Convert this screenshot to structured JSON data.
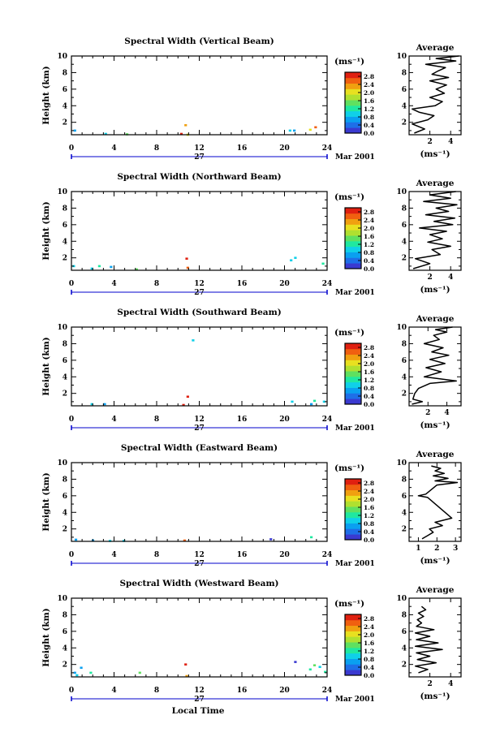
{
  "figure": {
    "bottom_label": "Local Time",
    "date_day": "27",
    "date_label": "Mar 2001"
  },
  "colorbar": {
    "unit": "(ms⁻¹)",
    "ticks": [
      "2.8",
      "2.4",
      "2.0",
      "1.6",
      "1.2",
      "0.8",
      "0.4",
      "0.0"
    ],
    "range": [
      0.0,
      3.0
    ],
    "colors": [
      "#3a3ad0",
      "#1e6fe8",
      "#0aa0f0",
      "#10d0e8",
      "#20e8a0",
      "#60e060",
      "#b0e030",
      "#e8e020",
      "#f0a010",
      "#f06010",
      "#e02010"
    ]
  },
  "chart_data": [
    {
      "type": "heatmap",
      "title": "Spectral Width (Vertical Beam)",
      "ylabel": "Height (km)",
      "xlim": [
        0,
        24
      ],
      "ylim": [
        0.5,
        10
      ],
      "xticks": [
        0,
        4,
        8,
        12,
        16,
        20,
        24
      ],
      "yticks": [
        2,
        4,
        6,
        8,
        10
      ],
      "cells": [
        {
          "t": 0.2,
          "h": 1.0,
          "w": 0.8
        },
        {
          "t": 3.1,
          "h": 0.6,
          "w": 0.9
        },
        {
          "t": 5.1,
          "h": 0.55,
          "w": 1.4
        },
        {
          "t": 10.2,
          "h": 0.6,
          "w": 2.9
        },
        {
          "t": 10.6,
          "h": 1.65,
          "w": 2.2
        },
        {
          "t": 10.8,
          "h": 0.5,
          "w": 2.0
        },
        {
          "t": 20.4,
          "h": 1.0,
          "w": 0.9
        },
        {
          "t": 20.8,
          "h": 1.0,
          "w": 0.8
        },
        {
          "t": 22.3,
          "h": 1.1,
          "w": 2.0
        },
        {
          "t": 22.8,
          "h": 1.4,
          "w": 2.5
        }
      ],
      "profile": {
        "xlabel": "(ms⁻¹)",
        "title": "Average",
        "xlim": [
          0,
          5
        ],
        "xticks": [
          2,
          4
        ],
        "ylim": [
          0.5,
          10
        ],
        "h": [
          0.7,
          1.2,
          1.8,
          2.3,
          2.8,
          3.2,
          3.6,
          4.0,
          4.5,
          5.0,
          5.5,
          6.0,
          6.5,
          7.0,
          7.4,
          7.8,
          8.2,
          8.6,
          9.0,
          9.4,
          9.7,
          10.0
        ],
        "w": [
          0.5,
          1.5,
          0.3,
          1.8,
          2.4,
          1.0,
          0.3,
          2.5,
          3.2,
          2.0,
          3.4,
          2.6,
          3.6,
          2.0,
          3.8,
          2.2,
          2.8,
          3.5,
          1.6,
          4.5,
          2.6,
          4.8
        ]
      }
    },
    {
      "type": "heatmap",
      "title": "Spectral Width (Northward Beam)",
      "ylabel": "Height (km)",
      "xlim": [
        0,
        24
      ],
      "ylim": [
        0.5,
        10
      ],
      "xticks": [
        0,
        4,
        8,
        12,
        16,
        20,
        24
      ],
      "yticks": [
        2,
        4,
        6,
        8,
        10
      ],
      "cells": [
        {
          "t": 0.1,
          "h": 1.0,
          "w": 0.9
        },
        {
          "t": 1.8,
          "h": 0.7,
          "w": 1.0
        },
        {
          "t": 2.5,
          "h": 1.0,
          "w": 1.3
        },
        {
          "t": 3.6,
          "h": 0.9,
          "w": 0.8
        },
        {
          "t": 6.0,
          "h": 0.6,
          "w": 1.4
        },
        {
          "t": 10.7,
          "h": 1.9,
          "w": 2.9
        },
        {
          "t": 10.8,
          "h": 0.8,
          "w": 2.5
        },
        {
          "t": 20.5,
          "h": 1.7,
          "w": 0.9
        },
        {
          "t": 20.9,
          "h": 2.0,
          "w": 1.0
        },
        {
          "t": 23.5,
          "h": 1.3,
          "w": 1.1
        }
      ],
      "profile": {
        "xlabel": "(ms⁻¹)",
        "title": "Average",
        "xlim": [
          0,
          5
        ],
        "xticks": [
          2,
          4
        ],
        "ylim": [
          0.5,
          10
        ],
        "h": [
          0.7,
          1.3,
          1.9,
          2.4,
          3.0,
          3.4,
          3.9,
          4.3,
          4.8,
          5.2,
          5.6,
          6.0,
          6.4,
          6.8,
          7.2,
          7.6,
          8.0,
          8.4,
          8.8,
          9.2,
          9.6,
          10.0
        ],
        "w": [
          0.4,
          2.0,
          0.6,
          3.0,
          2.2,
          4.0,
          1.8,
          3.2,
          2.0,
          3.6,
          1.0,
          4.2,
          2.4,
          4.4,
          1.6,
          3.8,
          2.6,
          4.6,
          1.4,
          4.0,
          2.0,
          4.5
        ]
      }
    },
    {
      "type": "heatmap",
      "title": "Spectral Width (Southward Beam)",
      "ylabel": "Height (km)",
      "xlim": [
        0,
        24
      ],
      "ylim": [
        0.5,
        10
      ],
      "xticks": [
        0,
        4,
        8,
        12,
        16,
        20,
        24
      ],
      "yticks": [
        2,
        4,
        6,
        8,
        10
      ],
      "cells": [
        {
          "t": 1.8,
          "h": 0.7,
          "w": 1.0
        },
        {
          "t": 3.0,
          "h": 0.7,
          "w": 0.8
        },
        {
          "t": 10.4,
          "h": 0.6,
          "w": 3.0
        },
        {
          "t": 10.8,
          "h": 1.6,
          "w": 2.8
        },
        {
          "t": 11.3,
          "h": 8.4,
          "w": 0.9
        },
        {
          "t": 20.6,
          "h": 1.0,
          "w": 1.0
        },
        {
          "t": 22.4,
          "h": 0.7,
          "w": 0.7
        },
        {
          "t": 22.7,
          "h": 1.1,
          "w": 1.2
        },
        {
          "t": 23.6,
          "h": 1.0,
          "w": 0.9
        }
      ],
      "profile": {
        "xlabel": "(ms⁻¹)",
        "title": "Average",
        "xlim": [
          0,
          5.5
        ],
        "xticks": [
          2,
          4
        ],
        "ylim": [
          0.5,
          10
        ],
        "h": [
          0.7,
          1.0,
          1.3,
          2.0,
          2.6,
          3.2,
          3.5,
          4.0,
          4.6,
          5.1,
          5.6,
          6.1,
          6.6,
          7.0,
          7.5,
          8.0,
          8.5,
          9.0,
          9.4,
          9.7,
          10.0
        ],
        "w": [
          0.3,
          1.4,
          0.4,
          0.6,
          1.0,
          2.2,
          5.0,
          1.6,
          3.4,
          1.8,
          3.8,
          2.2,
          4.2,
          2.4,
          3.6,
          1.6,
          3.2,
          2.6,
          4.0,
          2.8,
          4.6
        ]
      }
    },
    {
      "type": "heatmap",
      "title": "Spectral Width (Eastward Beam)",
      "ylabel": "Height (km)",
      "xlim": [
        0,
        24
      ],
      "ylim": [
        0.5,
        10
      ],
      "xticks": [
        0,
        4,
        8,
        12,
        16,
        20,
        24
      ],
      "yticks": [
        2,
        4,
        6,
        8,
        10
      ],
      "cells": [
        {
          "t": 0.3,
          "h": 0.7,
          "w": 0.8
        },
        {
          "t": 1.9,
          "h": 0.6,
          "w": 0.6
        },
        {
          "t": 3.5,
          "h": 0.55,
          "w": 0.9
        },
        {
          "t": 4.8,
          "h": 0.55,
          "w": 1.0
        },
        {
          "t": 10.5,
          "h": 0.6,
          "w": 2.6
        },
        {
          "t": 18.6,
          "h": 0.75,
          "w": 0.2
        },
        {
          "t": 22.4,
          "h": 1.0,
          "w": 1.1
        }
      ],
      "profile": {
        "xlabel": "(ms⁻¹)",
        "title": "Average",
        "xlim": [
          0.5,
          3.3
        ],
        "xticks": [
          1,
          2,
          3
        ],
        "ylim": [
          0.5,
          10
        ],
        "h": [
          0.8,
          1.2,
          1.6,
          2.0,
          2.4,
          2.8,
          3.3,
          5.8,
          6.0,
          6.2,
          7.3,
          7.6,
          7.8,
          8.1,
          8.4,
          8.7,
          9.0,
          9.3,
          9.6
        ],
        "w": [
          1.2,
          1.5,
          1.8,
          1.6,
          2.3,
          1.9,
          2.8,
          1.5,
          1.0,
          1.4,
          2.0,
          3.1,
          1.9,
          2.6,
          1.8,
          2.4,
          1.9,
          2.2,
          1.7
        ]
      }
    },
    {
      "type": "heatmap",
      "title": "Spectral Width (Westward Beam)",
      "ylabel": "Height (km)",
      "xlim": [
        0,
        24
      ],
      "ylim": [
        0.5,
        10
      ],
      "xticks": [
        0,
        4,
        8,
        12,
        16,
        20,
        24
      ],
      "yticks": [
        2,
        4,
        6,
        8,
        10
      ],
      "cells": [
        {
          "t": 0.2,
          "h": 1.0,
          "w": 0.8
        },
        {
          "t": 0.4,
          "h": 0.7,
          "w": 1.0
        },
        {
          "t": 0.8,
          "h": 1.6,
          "w": 0.8
        },
        {
          "t": 1.7,
          "h": 1.0,
          "w": 1.2
        },
        {
          "t": 6.3,
          "h": 1.0,
          "w": 1.4
        },
        {
          "t": 10.6,
          "h": 2.0,
          "w": 2.8
        },
        {
          "t": 10.7,
          "h": 0.6,
          "w": 2.4
        },
        {
          "t": 20.9,
          "h": 2.3,
          "w": 0.2
        },
        {
          "t": 22.3,
          "h": 1.4,
          "w": 1.2
        },
        {
          "t": 22.7,
          "h": 1.9,
          "w": 1.4
        },
        {
          "t": 23.2,
          "h": 1.7,
          "w": 1.0
        },
        {
          "t": 23.7,
          "h": 1.1,
          "w": 1.2
        }
      ],
      "profile": {
        "xlabel": "(ms⁻¹)",
        "title": "Average",
        "xlim": [
          0,
          5
        ],
        "xticks": [
          2,
          4
        ],
        "ylim": [
          0.5,
          10
        ],
        "h": [
          1.0,
          1.4,
          1.8,
          2.2,
          2.6,
          3.0,
          3.4,
          3.8,
          4.2,
          4.6,
          5.0,
          5.4,
          5.8,
          6.2,
          6.6,
          7.0,
          7.4,
          7.8,
          8.2,
          8.6,
          9.0
        ],
        "w": [
          0.9,
          1.8,
          0.6,
          2.6,
          0.8,
          2.0,
          0.7,
          3.2,
          0.6,
          2.8,
          0.7,
          2.0,
          0.6,
          2.4,
          0.7,
          1.2,
          0.8,
          1.4,
          0.9,
          1.6,
          1.2
        ]
      }
    }
  ]
}
